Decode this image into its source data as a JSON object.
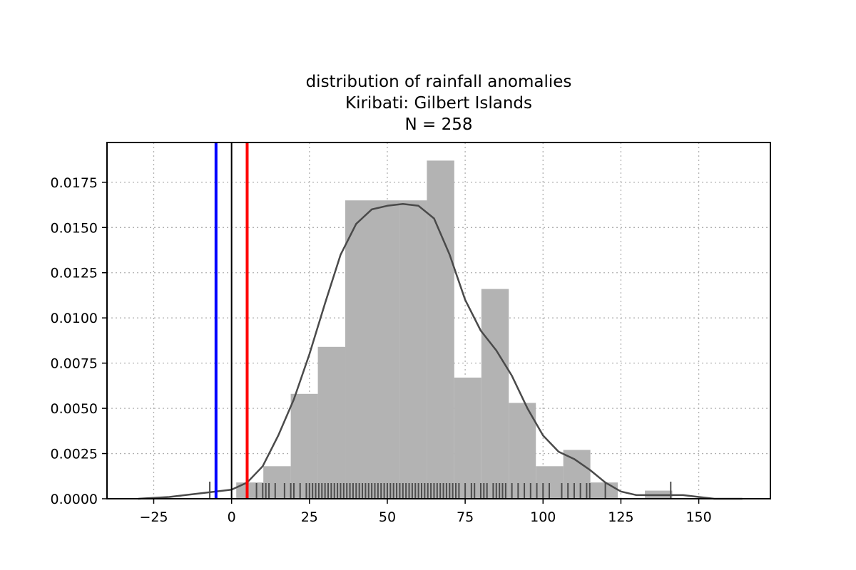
{
  "chart_data": {
    "type": "histogram",
    "title_lines": [
      "distribution of rainfall anomalies",
      "Kiribati: Gilbert Islands",
      "N = 258"
    ],
    "xlabel": "",
    "ylabel": "",
    "xlim": [
      -40,
      173
    ],
    "ylim": [
      0,
      0.0197
    ],
    "xticks": [
      -25,
      0,
      25,
      50,
      75,
      100,
      125,
      150
    ],
    "xtick_labels": [
      "−25",
      "0",
      "25",
      "50",
      "75",
      "100",
      "125",
      "150"
    ],
    "yticks": [
      0,
      0.0025,
      0.005,
      0.0075,
      0.01,
      0.0125,
      0.015,
      0.0175
    ],
    "ytick_labels": [
      "0.0000",
      "0.0025",
      "0.0050",
      "0.0075",
      "0.0100",
      "0.0125",
      "0.0150",
      "0.0175"
    ],
    "grid": true,
    "bins": [
      {
        "x0": 1.5,
        "x1": 10.2,
        "density": 0.0009
      },
      {
        "x0": 10.2,
        "x1": 19.0,
        "density": 0.0018
      },
      {
        "x0": 19.0,
        "x1": 27.7,
        "density": 0.0058
      },
      {
        "x0": 27.7,
        "x1": 36.5,
        "density": 0.0084
      },
      {
        "x0": 36.5,
        "x1": 45.2,
        "density": 0.0165
      },
      {
        "x0": 45.2,
        "x1": 54.0,
        "density": 0.0165
      },
      {
        "x0": 54.0,
        "x1": 62.7,
        "density": 0.0165
      },
      {
        "x0": 62.7,
        "x1": 71.5,
        "density": 0.0187
      },
      {
        "x0": 71.5,
        "x1": 80.2,
        "density": 0.0067
      },
      {
        "x0": 80.2,
        "x1": 89.0,
        "density": 0.0116
      },
      {
        "x0": 89.0,
        "x1": 97.7,
        "density": 0.0053
      },
      {
        "x0": 97.7,
        "x1": 106.5,
        "density": 0.0018
      },
      {
        "x0": 106.5,
        "x1": 115.2,
        "density": 0.0027
      },
      {
        "x0": 115.2,
        "x1": 124.0,
        "density": 0.0009
      },
      {
        "x0": 124.0,
        "x1": 132.7,
        "density": 0
      },
      {
        "x0": 132.7,
        "x1": 141.5,
        "density": 0.00045
      }
    ],
    "kde": {
      "x": [
        -30,
        -20,
        -10,
        0,
        5,
        10,
        15,
        20,
        25,
        30,
        35,
        40,
        45,
        50,
        55,
        60,
        65,
        70,
        75,
        80,
        85,
        90,
        95,
        100,
        105,
        110,
        115,
        120,
        125,
        130,
        135,
        140,
        145,
        150,
        155,
        164
      ],
      "y": [
        0.0,
        0.0001,
        0.0003,
        0.0005,
        0.0009,
        0.0018,
        0.0035,
        0.0055,
        0.008,
        0.0108,
        0.0135,
        0.0152,
        0.016,
        0.0162,
        0.0163,
        0.0162,
        0.0155,
        0.0135,
        0.011,
        0.0093,
        0.0082,
        0.0068,
        0.005,
        0.0035,
        0.0026,
        0.0022,
        0.0016,
        0.0009,
        0.0004,
        0.0002,
        0.0002,
        0.0002,
        0.0002,
        0.0001,
        0.0,
        0.0
      ]
    },
    "rug": [
      -7,
      -5,
      5,
      8,
      10,
      11,
      12,
      14,
      17,
      19,
      20,
      22,
      24,
      25,
      26,
      27,
      28,
      29,
      30,
      31,
      32,
      33,
      34,
      35,
      36,
      37,
      38,
      39,
      40,
      41,
      42,
      43,
      44,
      45,
      46,
      47,
      48,
      49,
      50,
      51,
      52,
      53,
      54,
      55,
      56,
      57,
      58,
      59,
      60,
      61,
      62,
      63,
      64,
      65,
      66,
      67,
      68,
      69,
      70,
      71,
      72,
      73,
      75,
      77,
      78,
      80,
      81,
      82,
      84,
      85,
      86,
      87,
      88,
      90,
      92,
      94,
      96,
      98,
      100,
      102,
      106,
      108,
      110,
      112,
      114,
      115,
      120,
      141
    ],
    "vlines": [
      {
        "x": -5,
        "color": "#0000ff"
      },
      {
        "x": 0,
        "color": "#000000"
      },
      {
        "x": 5,
        "color": "#ff0000"
      }
    ],
    "colors": {
      "bars": "#b3b3b3",
      "kde": "#4a4a4a",
      "rug": "#4d4d4d",
      "grid": "#b0b0b0"
    }
  }
}
